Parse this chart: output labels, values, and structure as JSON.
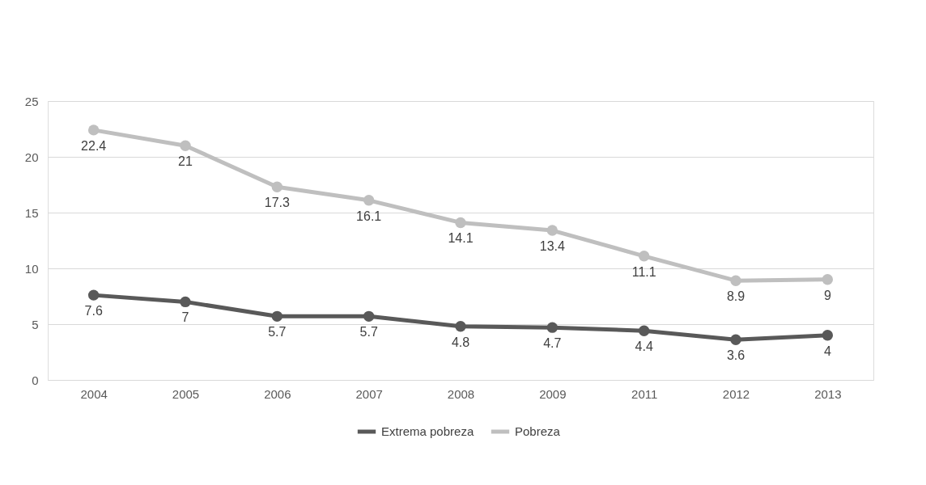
{
  "chart_data": {
    "type": "line",
    "categories": [
      "2004",
      "2005",
      "2006",
      "2007",
      "2008",
      "2009",
      "2011",
      "2012",
      "2013"
    ],
    "series": [
      {
        "name": "Extrema pobreza",
        "color": "#595959",
        "values": [
          7.6,
          7,
          5.7,
          5.7,
          4.8,
          4.7,
          4.4,
          3.6,
          4
        ]
      },
      {
        "name": "Pobreza",
        "color": "#bfbfbf",
        "values": [
          22.4,
          21,
          17.3,
          16.1,
          14.1,
          13.4,
          11.1,
          8.9,
          9
        ]
      }
    ],
    "ylim": [
      0,
      25
    ],
    "yticks": [
      0,
      5,
      10,
      15,
      20,
      25
    ],
    "grid": "y",
    "legend": "bottom",
    "marker": "circle",
    "line_style": "solid",
    "data_labels": true
  }
}
